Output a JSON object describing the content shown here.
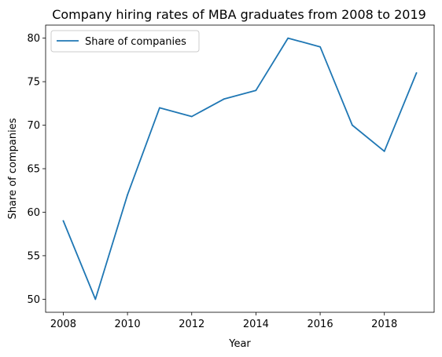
{
  "chart_data": {
    "type": "line",
    "title": "Company hiring rates of MBA graduates from 2008 to 2019",
    "xlabel": "Year",
    "ylabel": "Share of companies",
    "x": [
      2008,
      2009,
      2010,
      2011,
      2012,
      2013,
      2014,
      2015,
      2016,
      2017,
      2018,
      2019
    ],
    "series": [
      {
        "name": "Share of companies",
        "values": [
          59,
          50,
          62,
          72,
          71,
          73,
          74,
          80,
          79,
          70,
          67,
          76
        ],
        "color": "#1f77b4"
      }
    ],
    "xlim": [
      2007.45,
      2019.55
    ],
    "ylim": [
      48.5,
      81.5
    ],
    "x_ticks": [
      2008,
      2010,
      2012,
      2014,
      2016,
      2018
    ],
    "y_ticks": [
      50,
      55,
      60,
      65,
      70,
      75,
      80
    ],
    "grid": false,
    "legend_position": "top-left"
  }
}
